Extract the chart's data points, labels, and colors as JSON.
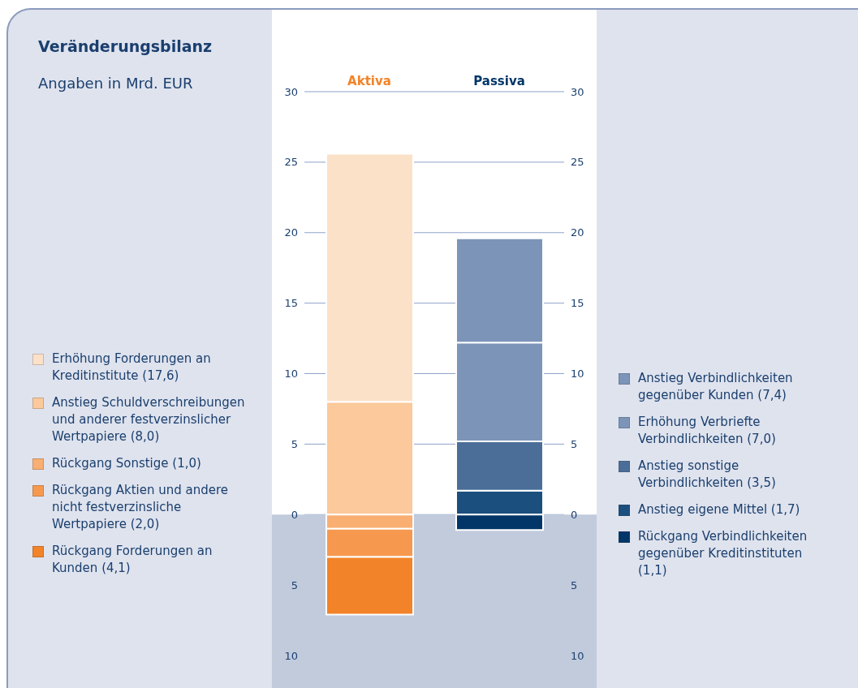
{
  "chart_data": {
    "type": "bar",
    "title": "Veränderungsbilanz",
    "subtitle": "Angaben in Mrd. EUR",
    "categories": [
      "Aktiva",
      "Passiva"
    ],
    "stacked": true,
    "series": [
      {
        "name": "Anstieg Schuldverschreibungen und anderer festverzinslicher Wertpapiere (8,0)",
        "color": "#fbc99b",
        "values": [
          8.0,
          null
        ]
      },
      {
        "name": "Erhöhung Forderungen an Kreditinstitute (17,6)",
        "color": "#fce1c9",
        "values": [
          17.6,
          null
        ]
      },
      {
        "name": "Rückgang Sonstige (1,0)",
        "color": "#f9ae72",
        "values": [
          -1.0,
          null
        ]
      },
      {
        "name": "Rückgang Aktien und andere nicht festverzinsliche Wertpapiere (2,0)",
        "color": "#f6994f",
        "values": [
          -2.0,
          null
        ]
      },
      {
        "name": "Rückgang Forderungen an Kunden (4,1)",
        "color": "#f28329",
        "values": [
          -4.1,
          null
        ]
      },
      {
        "name": "Anstieg eigene Mittel (1,7)",
        "color": "#1a4f7e",
        "values": [
          null,
          1.7
        ]
      },
      {
        "name": "Anstieg sonstige Verbindlichkeiten (3,5)",
        "color": "#4b6e98",
        "values": [
          null,
          3.5
        ]
      },
      {
        "name": "Erhöhung Verbriefte Verbindlichkeiten (7,0)",
        "color": "#7b94b8",
        "values": [
          null,
          7.0
        ]
      },
      {
        "name": "Anstieg Verbindlichkeiten gegenüber Kunden (7,4)",
        "color": "#7b94b8",
        "values": [
          null,
          7.4
        ]
      },
      {
        "name": "Rückgang Verbindlichkeiten gegenüber Kreditinstituten (1,1)",
        "color": "#023668",
        "values": [
          null,
          -1.1
        ]
      }
    ],
    "ylim": [
      -10,
      30
    ],
    "yticks": [
      {
        "value": -10,
        "label": "10"
      },
      {
        "value": -5,
        "label": "5"
      },
      0,
      5,
      10,
      15,
      20,
      25,
      30
    ],
    "y2lim": [
      -10,
      30
    ],
    "y2ticks": [
      {
        "value": -10,
        "label": "10"
      },
      {
        "value": -5,
        "label": "5"
      },
      0,
      5,
      10,
      15,
      20,
      25,
      30
    ],
    "grid": "y",
    "legend": "bottom",
    "bands": [
      {
        "axis": "y",
        "from": -10,
        "to": 0,
        "color": "#c1cbdc"
      }
    ]
  }
}
